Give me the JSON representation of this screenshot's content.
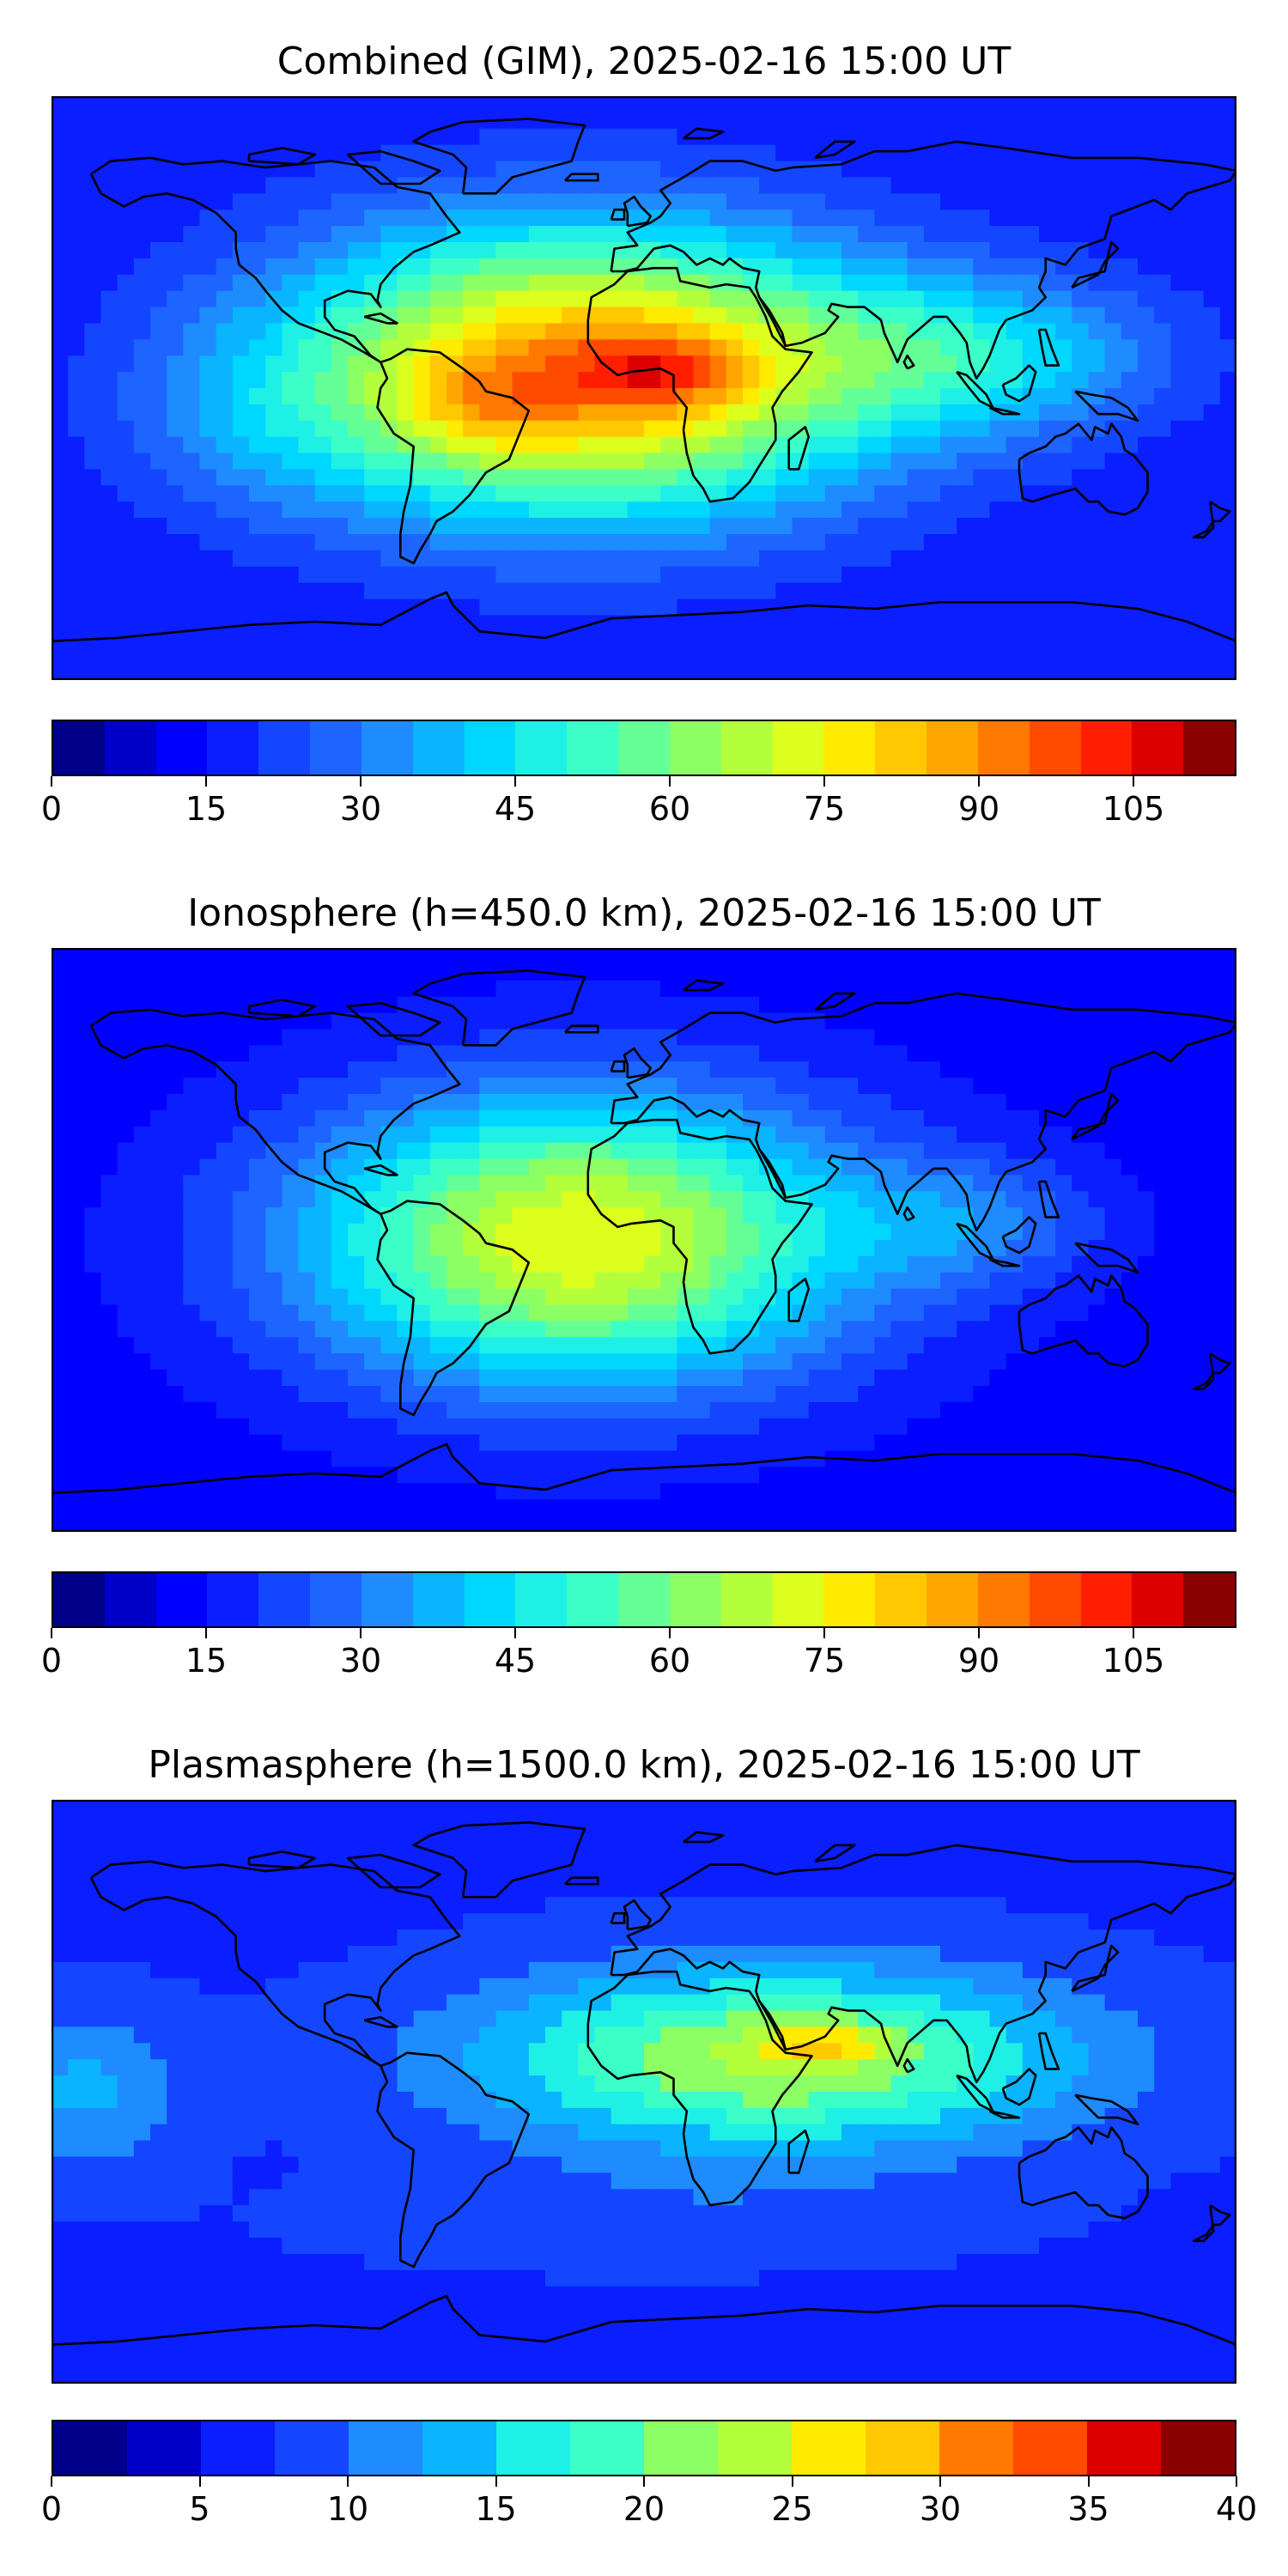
{
  "panels": [
    {
      "title": "Combined (GIM), 2025-02-16 15:00 UT",
      "colorbar": {
        "min": 0,
        "max": 115,
        "step": 5,
        "ticks": [
          "0",
          "15",
          "30",
          "45",
          "60",
          "75",
          "90",
          "105"
        ],
        "tick_values": [
          0,
          15,
          30,
          45,
          60,
          75,
          90,
          105
        ]
      },
      "field": {
        "background_level": 15,
        "blobs": [
          {
            "lon": -20,
            "lat": 5,
            "rlon": 90,
            "rlat": 45,
            "peak": 75
          },
          {
            "lon": 5,
            "lat": 5,
            "rlon": 25,
            "rlat": 12,
            "peak": 20
          },
          {
            "lon": -50,
            "lat": -5,
            "rlon": 25,
            "rlat": 15,
            "peak": 12
          },
          {
            "lon": 100,
            "lat": 10,
            "rlon": 60,
            "rlat": 25,
            "peak": 25
          },
          {
            "lon": -120,
            "lat": -10,
            "rlon": 40,
            "rlat": 30,
            "peak": 8
          }
        ]
      }
    },
    {
      "title": "Ionosphere  (h=450.0 km), 2025-02-16 15:00 UT",
      "colorbar": {
        "min": 0,
        "max": 115,
        "step": 5,
        "ticks": [
          "0",
          "15",
          "30",
          "45",
          "60",
          "75",
          "90",
          "105"
        ],
        "tick_values": [
          0,
          15,
          30,
          45,
          60,
          75,
          90,
          105
        ]
      },
      "field": {
        "background_level": 12,
        "blobs": [
          {
            "lon": -20,
            "lat": 0,
            "rlon": 85,
            "rlat": 45,
            "peak": 63
          },
          {
            "lon": 100,
            "lat": 5,
            "rlon": 40,
            "rlat": 20,
            "peak": 15
          }
        ]
      }
    },
    {
      "title": "Plasmasphere (h=1500.0 km), 2025-02-16 15:00 UT",
      "colorbar": {
        "min": 0,
        "max": 40,
        "step": 2.5,
        "ticks": [
          "0",
          "5",
          "10",
          "15",
          "20",
          "25",
          "30",
          "35",
          "40"
        ],
        "tick_values": [
          0,
          5,
          10,
          15,
          20,
          25,
          30,
          35,
          40
        ]
      },
      "field": {
        "background_level": 7,
        "blobs": [
          {
            "lon": 40,
            "lat": 10,
            "rlon": 90,
            "rlat": 28,
            "peak": 16
          },
          {
            "lon": 55,
            "lat": 15,
            "rlon": 20,
            "rlat": 6,
            "peak": 7
          },
          {
            "lon": -170,
            "lat": 0,
            "rlon": 30,
            "rlat": 25,
            "peak": 6
          },
          {
            "lon": 0,
            "lat": -40,
            "rlon": 100,
            "rlat": 15,
            "peak": 2
          }
        ]
      }
    }
  ],
  "colormap": [
    "#00008b",
    "#0000c8",
    "#0000ff",
    "#0a1eff",
    "#1446ff",
    "#1e64ff",
    "#1e8cff",
    "#0ab4ff",
    "#00d7ff",
    "#1ef0e6",
    "#3cffc8",
    "#64ff96",
    "#8cff64",
    "#b4ff3c",
    "#dcff1e",
    "#ffeb00",
    "#ffc800",
    "#ffa500",
    "#ff7800",
    "#ff4b00",
    "#ff1e00",
    "#dc0000",
    "#8b0000"
  ],
  "map": {
    "lon_range": [
      -180,
      180
    ],
    "lat_range": [
      -90,
      90
    ],
    "coastline_color": "#000000"
  }
}
